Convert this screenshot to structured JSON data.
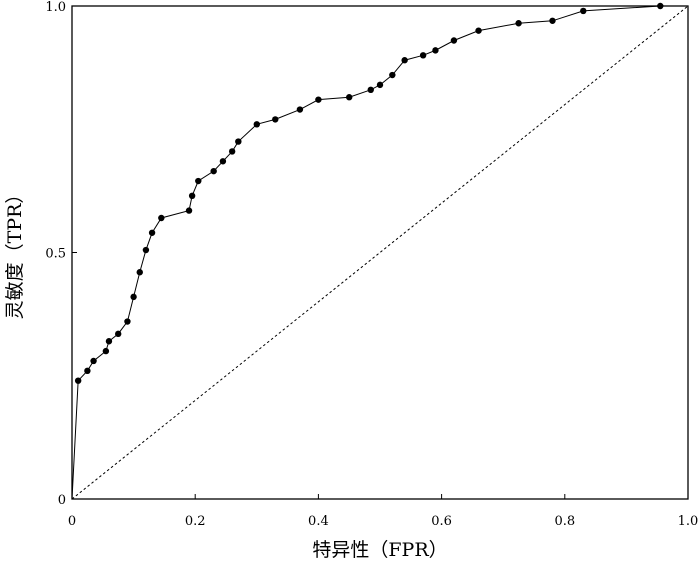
{
  "chart_data": {
    "type": "line",
    "title": "",
    "xlabel": "特异性（FPR）",
    "ylabel": "灵敏度（TPR）",
    "xlim": [
      0,
      1
    ],
    "ylim": [
      0,
      1
    ],
    "x_ticks": [
      {
        "value": 0,
        "label": "0"
      },
      {
        "value": 0.2,
        "label": "0.2"
      },
      {
        "value": 0.4,
        "label": "0.4"
      },
      {
        "value": 0.6,
        "label": "0.6"
      },
      {
        "value": 0.8,
        "label": "0.8"
      },
      {
        "value": 1.0,
        "label": "1.0"
      }
    ],
    "y_ticks": [
      {
        "value": 0,
        "label": "0"
      },
      {
        "value": 0.5,
        "label": "0.5"
      },
      {
        "value": 1.0,
        "label": "1.0"
      }
    ],
    "grid": false,
    "legend": "none",
    "series": [
      {
        "role": "roc-curve",
        "line_color": "#000000",
        "marker": "filled-circle",
        "line_start": {
          "x": 0,
          "y": 0
        },
        "points": [
          {
            "x": 0.01,
            "y": 0.24
          },
          {
            "x": 0.025,
            "y": 0.26
          },
          {
            "x": 0.035,
            "y": 0.28
          },
          {
            "x": 0.055,
            "y": 0.3
          },
          {
            "x": 0.06,
            "y": 0.32
          },
          {
            "x": 0.075,
            "y": 0.335
          },
          {
            "x": 0.09,
            "y": 0.36
          },
          {
            "x": 0.1,
            "y": 0.41
          },
          {
            "x": 0.11,
            "y": 0.46
          },
          {
            "x": 0.12,
            "y": 0.505
          },
          {
            "x": 0.13,
            "y": 0.54
          },
          {
            "x": 0.145,
            "y": 0.57
          },
          {
            "x": 0.19,
            "y": 0.585
          },
          {
            "x": 0.195,
            "y": 0.615
          },
          {
            "x": 0.205,
            "y": 0.645
          },
          {
            "x": 0.23,
            "y": 0.665
          },
          {
            "x": 0.245,
            "y": 0.685
          },
          {
            "x": 0.26,
            "y": 0.705
          },
          {
            "x": 0.27,
            "y": 0.725
          },
          {
            "x": 0.3,
            "y": 0.76
          },
          {
            "x": 0.33,
            "y": 0.77
          },
          {
            "x": 0.37,
            "y": 0.79
          },
          {
            "x": 0.4,
            "y": 0.81
          },
          {
            "x": 0.45,
            "y": 0.815
          },
          {
            "x": 0.485,
            "y": 0.83
          },
          {
            "x": 0.5,
            "y": 0.84
          },
          {
            "x": 0.52,
            "y": 0.86
          },
          {
            "x": 0.54,
            "y": 0.89
          },
          {
            "x": 0.57,
            "y": 0.9
          },
          {
            "x": 0.59,
            "y": 0.91
          },
          {
            "x": 0.62,
            "y": 0.93
          },
          {
            "x": 0.66,
            "y": 0.95
          },
          {
            "x": 0.725,
            "y": 0.965
          },
          {
            "x": 0.78,
            "y": 0.97
          },
          {
            "x": 0.83,
            "y": 0.99
          },
          {
            "x": 0.955,
            "y": 1.0
          }
        ]
      },
      {
        "role": "reference-diagonal",
        "style": "dotted",
        "line_color": "#000000",
        "x": [
          0,
          1
        ],
        "y": [
          0,
          1
        ]
      }
    ]
  }
}
